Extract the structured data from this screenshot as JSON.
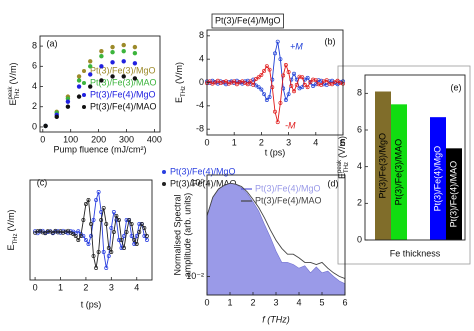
{
  "chart_data": [
    {
      "type": "scatter",
      "panel": "(a)",
      "xlabel": "Pump fluence (mJ/cm²)",
      "ylabel": {
        "main": "E",
        "sup": "peak",
        "sub": "THz",
        "unit": "(V/m)"
      },
      "x": [
        10,
        50,
        90,
        130,
        170,
        210,
        250,
        290,
        330
      ],
      "series": [
        {
          "name": "Pt(3)/Fe(3)/MgO",
          "color": "#9c8a2a",
          "values": [
            0.1,
            1.5,
            3.0,
            5.0,
            6.5,
            7.5,
            7.9,
            8.1,
            7.9
          ]
        },
        {
          "name": "Pt(3)/Fe(3)/MAO",
          "color": "#3cb43c",
          "values": [
            0.1,
            1.4,
            2.8,
            4.6,
            6.0,
            7.0,
            7.4,
            7.5,
            7.3
          ]
        },
        {
          "name": "Pt(3)/Fe(4)/MgO",
          "color": "#2020e0",
          "values": [
            0.1,
            1.2,
            2.5,
            4.0,
            5.2,
            6.0,
            6.4,
            6.5,
            6.3
          ]
        },
        {
          "name": "Pt(3)/Fe(4)/MAO",
          "color": "#111111",
          "values": [
            0.1,
            1.0,
            2.0,
            3.0,
            4.0,
            4.6,
            5.0,
            5.0,
            4.8
          ]
        }
      ],
      "xlim": [
        -10,
        420
      ],
      "xticks": [
        0,
        100,
        200,
        300,
        400
      ],
      "ylim": [
        -0.5,
        9
      ],
      "yticks": [
        0,
        2,
        4,
        6,
        8
      ]
    },
    {
      "type": "line",
      "panel": "(b)",
      "title": "Pt(3)/Fe(4)/MgO",
      "xlabel": "t (ps)",
      "ylabel": {
        "main": "E",
        "sub": "THz",
        "unit": "(V/m)"
      },
      "x": [
        0,
        0.1,
        0.2,
        0.3,
        0.4,
        0.5,
        0.6,
        0.7,
        0.8,
        0.9,
        1.0,
        1.1,
        1.2,
        1.3,
        1.4,
        1.5,
        1.6,
        1.7,
        1.8,
        1.9,
        2.0,
        2.1,
        2.2,
        2.3,
        2.4,
        2.5,
        2.6,
        2.7,
        2.8,
        2.9,
        3.0,
        3.1,
        3.2,
        3.3,
        3.4,
        3.5,
        3.6,
        3.7,
        3.8,
        3.9,
        4.0,
        4.1,
        4.2,
        4.3,
        4.4,
        4.5,
        4.6,
        4.7,
        4.8,
        4.9,
        5.0
      ],
      "series": [
        {
          "name": "+M",
          "color": "#1f3fd6",
          "values": [
            0.2,
            -0.1,
            0.3,
            0.1,
            -0.2,
            0.2,
            0.0,
            -0.3,
            0.1,
            0.2,
            -0.1,
            0.3,
            0.0,
            -0.2,
            0.2,
            0.3,
            -0.2,
            0.5,
            -0.5,
            -0.8,
            -1.2,
            -2.0,
            -3.0,
            -2.5,
            0.5,
            5.0,
            7.0,
            4.0,
            -1.0,
            -3.0,
            -2.0,
            0.5,
            1.5,
            0.5,
            -1.0,
            -0.8,
            0.5,
            0.8,
            0.0,
            -0.6,
            -0.3,
            0.4,
            0.3,
            -0.3,
            -0.4,
            0.2,
            0.3,
            -0.1,
            -0.3,
            0.1,
            0.2
          ]
        },
        {
          "name": "-M",
          "color": "#e01a1a",
          "values": [
            -0.1,
            0.2,
            -0.2,
            0.0,
            0.3,
            -0.1,
            0.1,
            0.2,
            -0.2,
            0.0,
            0.2,
            -0.3,
            0.1,
            0.2,
            -0.1,
            -0.3,
            0.2,
            -0.4,
            0.6,
            0.9,
            1.3,
            2.0,
            2.8,
            2.2,
            -0.8,
            -5.0,
            -6.8,
            -3.5,
            1.2,
            3.0,
            1.8,
            -0.6,
            -1.5,
            -0.4,
            1.0,
            0.9,
            -0.4,
            -0.8,
            0.1,
            0.5,
            0.4,
            -0.3,
            -0.4,
            0.2,
            0.4,
            -0.2,
            -0.3,
            0.1,
            0.3,
            -0.1,
            -0.2
          ]
        }
      ],
      "xlim": [
        0,
        5
      ],
      "xticks": [
        0,
        1,
        2,
        3,
        4,
        5
      ],
      "ylim": [
        -9,
        9
      ],
      "yticks": [
        -8,
        -4,
        0,
        4,
        8
      ]
    },
    {
      "type": "line",
      "panel": "(c)",
      "xlabel": "t (ps)",
      "ylabel": {
        "main": "E",
        "sub": "THz",
        "unit": "(V/m)"
      },
      "x": [
        0,
        0.1,
        0.2,
        0.3,
        0.4,
        0.5,
        0.6,
        0.7,
        0.8,
        0.9,
        1.0,
        1.1,
        1.2,
        1.3,
        1.4,
        1.5,
        1.6,
        1.7,
        1.8,
        1.9,
        2.0,
        2.1,
        2.2,
        2.3,
        2.4,
        2.5,
        2.6,
        2.7,
        2.8,
        2.9,
        3.0,
        3.1,
        3.2,
        3.3,
        3.4,
        3.5,
        3.6,
        3.7,
        3.8,
        3.9,
        4.0,
        4.1,
        4.2,
        4.3,
        4.4
      ],
      "series": [
        {
          "name": "Pt(3)/Fe(4)/MgO",
          "color": "#2a3fe0",
          "values": [
            0.02,
            -0.03,
            0.01,
            0.03,
            -0.02,
            0.0,
            0.02,
            -0.03,
            0.01,
            0.02,
            -0.02,
            0.03,
            0.0,
            -0.03,
            0.02,
            0.01,
            -0.03,
            0.02,
            -0.05,
            -0.1,
            -0.2,
            -0.3,
            -0.1,
            0.3,
            0.8,
            1.0,
            0.5,
            -0.5,
            -0.9,
            -0.6,
            0.1,
            0.5,
            0.3,
            -0.2,
            -0.4,
            -0.1,
            0.3,
            0.3,
            -0.1,
            -0.3,
            -0.1,
            0.2,
            0.2,
            -0.1,
            -0.2
          ]
        },
        {
          "name": "Pt(3)/Fe(4)/MAO",
          "color": "#222222",
          "values": [
            -0.02,
            0.02,
            0.03,
            -0.01,
            -0.03,
            0.02,
            0.01,
            -0.02,
            0.03,
            -0.01,
            0.02,
            -0.02,
            0.01,
            0.03,
            -0.02,
            -0.05,
            -0.1,
            -0.2,
            -0.1,
            0.3,
            0.7,
            0.8,
            0.2,
            -0.6,
            -0.9,
            -0.5,
            0.3,
            0.6,
            0.2,
            -0.4,
            -0.5,
            0.0,
            0.4,
            0.3,
            -0.2,
            -0.4,
            0.0,
            0.3,
            0.2,
            -0.2,
            -0.3,
            0.0,
            0.2,
            0.1,
            -0.1
          ]
        }
      ],
      "xlim": [
        -0.2,
        4.6
      ],
      "xticks": [
        0,
        1,
        2,
        3,
        4
      ],
      "ylim": [
        -1.2,
        1.3
      ]
    },
    {
      "type": "area",
      "panel": "(d)",
      "xlabel": "f (THz)",
      "ylabel": [
        "Normalised Spectral",
        "amplitude (arb. units)"
      ],
      "x": [
        0,
        0.25,
        0.5,
        0.75,
        1,
        1.25,
        1.5,
        1.75,
        2,
        2.25,
        2.5,
        2.75,
        3,
        3.25,
        3.5,
        3.75,
        4,
        4.25,
        4.5,
        4.75,
        5,
        5.25,
        5.5,
        5.75,
        6
      ],
      "series": [
        {
          "name": "Pt(3)/Fe(4)/MgO",
          "color": "#9a9ae8",
          "style": "area",
          "values": [
            0.2,
            0.5,
            0.75,
            0.9,
            1.0,
            0.95,
            0.8,
            0.6,
            0.4,
            0.25,
            0.13,
            0.07,
            0.035,
            0.02,
            0.02,
            0.018,
            0.015,
            0.017,
            0.012,
            0.016,
            0.012,
            0.013,
            0.01,
            0.008,
            0.007
          ]
        },
        {
          "name": "Pt(3)/Fe(4)/MAO",
          "color": "#444444",
          "style": "line",
          "values": [
            0.2,
            0.5,
            0.75,
            0.9,
            1.0,
            0.95,
            0.85,
            0.65,
            0.45,
            0.3,
            0.18,
            0.1,
            0.06,
            0.04,
            0.03,
            0.03,
            0.025,
            0.02,
            0.02,
            0.018,
            0.02,
            0.015,
            0.012,
            0.01,
            0.009
          ]
        }
      ],
      "xlim": [
        0,
        6
      ],
      "xticks": [
        0,
        1,
        2,
        3,
        4,
        5,
        6
      ],
      "ylim": [
        0.004,
        1.5
      ],
      "log_y": true,
      "yticks": [
        {
          "value": 0.01,
          "label": "10⁻²"
        },
        {
          "value": 1,
          "label": "10⁰"
        }
      ]
    },
    {
      "type": "bar",
      "panel": "(e)",
      "xlabel": "Fe thickness",
      "ylabel": {
        "main": "E",
        "sup": "peak",
        "sub": "THz",
        "unit": "(V/m)"
      },
      "categories": [
        "Pt(3)/Fe(3)/MgO",
        "Pt(3)/Fe(3)/MAO",
        "Pt(3)/Fe(4)/MgO",
        "Pt(3)/Fe(4)/MAO"
      ],
      "values": [
        8.1,
        7.4,
        6.7,
        5.0
      ],
      "colors": [
        "#806d2a",
        "#11dd11",
        "#0000ff",
        "#000000"
      ],
      "ylim": [
        0,
        9
      ],
      "yticks": [
        0,
        2,
        4,
        6,
        8
      ]
    }
  ]
}
